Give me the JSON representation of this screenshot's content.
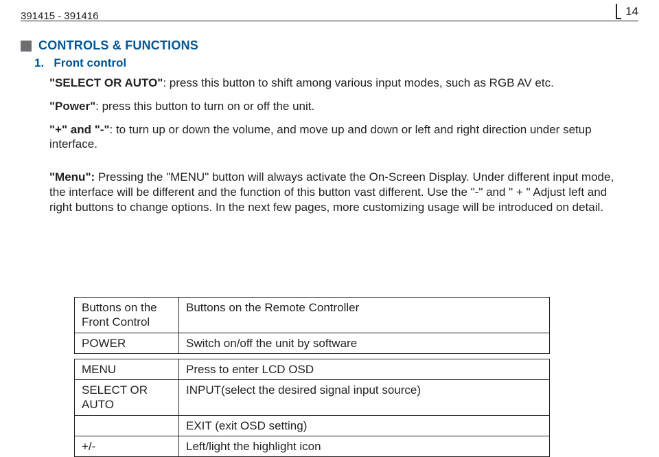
{
  "header": {
    "doc_id": "391415 - 391416",
    "page_num": "14"
  },
  "section": {
    "title": "CONTROLS & FUNCTIONS",
    "sub_num": "1.",
    "sub_title": "Front control"
  },
  "para": {
    "p1a": "\"SELECT OR AUTO\"",
    "p1b": ": press this button to shift among various input modes, such as RGB AV etc.",
    "p2a": "\"Power\"",
    "p2b": ": press this button to turn on or off the unit.",
    "p3a": "\"+\" and \"-\"",
    "p3b": ": to turn up or down the volume, and move up and down or left and right direction under setup interface.",
    "p4a": "\"Menu\":",
    "p4b": " Pressing  the \"MENU\" button will always activate the On-Screen Display. Under different input mode, the interface will be different and the function of this button vast different. Use the \"-\" and \" + \" Adjust left and right buttons to change options. In the next few pages, more customizing usage will be introduced on detail."
  },
  "table": {
    "r1c1a": "Buttons on the",
    "r1c1b": "Front Control",
    "r1c2": "Buttons on the Remote Controller",
    "r2c1": "POWER",
    "r2c2": "Switch on/off the unit by software",
    "r3c1": "MENU",
    "r3c2": "Press to enter LCD OSD",
    "r4c1": "SELECT OR AUTO",
    "r4c2": "INPUT(select the desired signal input source)",
    "r5c1": "",
    "r5c2": "EXIT (exit OSD setting)",
    "r6c1": "+/-",
    "r6c2": "Left/light the highlight icon"
  }
}
